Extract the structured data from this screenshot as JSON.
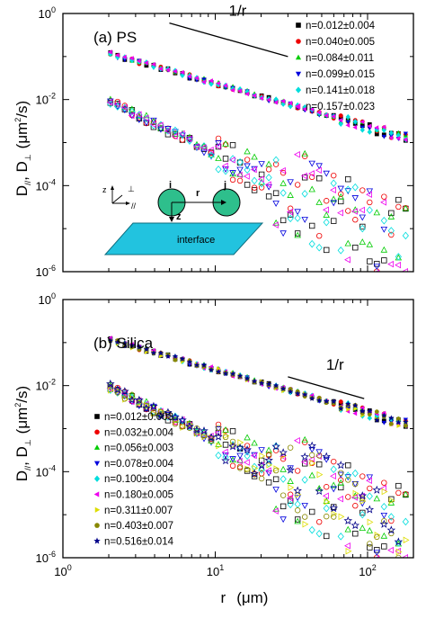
{
  "chart_data": [
    {
      "type": "scatter",
      "panel_label": "(a) PS",
      "x_scale": "log",
      "y_scale": "log",
      "xlim": [
        1,
        200
      ],
      "ylim": [
        1e-06,
        1
      ],
      "y_ticks": [
        {
          "value": 1e-06,
          "base": "10",
          "exp": "-6"
        },
        {
          "value": 0.0001,
          "base": "10",
          "exp": "-4"
        },
        {
          "value": 0.01,
          "base": "10",
          "exp": "-2"
        },
        {
          "value": 1,
          "base": "10",
          "exp": "0"
        }
      ],
      "annotation": {
        "text": "1/r",
        "line_x": [
          5,
          30
        ],
        "line_y": [
          0.6,
          0.1
        ]
      },
      "inset": {
        "label_i": "i",
        "label_j": "j",
        "label_r": "r",
        "label_z": "z",
        "axis_z": "z",
        "axis_perp": "⊥",
        "axis_par": "//",
        "surface_label": "interface"
      },
      "series": [
        {
          "name": "n=0.012±0.004",
          "marker": "square",
          "color": "#000000",
          "amp_par": 0.235,
          "amp_perp": 0.03
        },
        {
          "name": "n=0.040±0.005",
          "marker": "circle",
          "color": "#ee0000",
          "amp_par": 0.237,
          "amp_perp": 0.031
        },
        {
          "name": "n=0.084±0.011",
          "marker": "triangle-up",
          "color": "#00cc00",
          "amp_par": 0.239,
          "amp_perp": 0.032
        },
        {
          "name": "n=0.099±0.015",
          "marker": "triangle-down",
          "color": "#0000dd",
          "amp_par": 0.233,
          "amp_perp": 0.03
        },
        {
          "name": "n=0.141±0.018",
          "marker": "diamond",
          "color": "#00dddd",
          "amp_par": 0.236,
          "amp_perp": 0.031
        },
        {
          "name": "n=0.157±0.023",
          "marker": "triangle-left",
          "color": "#ee00ee",
          "amp_par": 0.238,
          "amp_perp": 0.032
        }
      ]
    },
    {
      "type": "scatter",
      "panel_label": "(b) Silica",
      "x_scale": "log",
      "y_scale": "log",
      "xlim": [
        1,
        200
      ],
      "ylim": [
        1e-06,
        1
      ],
      "x_ticks": [
        {
          "value": 1,
          "base": "10",
          "exp": "0"
        },
        {
          "value": 10,
          "base": "10",
          "exp": "1"
        },
        {
          "value": 100,
          "base": "10",
          "exp": "2"
        }
      ],
      "y_ticks": [
        {
          "value": 1e-06,
          "base": "10",
          "exp": "-6"
        },
        {
          "value": 0.0001,
          "base": "10",
          "exp": "-4"
        },
        {
          "value": 0.01,
          "base": "10",
          "exp": "-2"
        },
        {
          "value": 1,
          "base": "10",
          "exp": "0"
        }
      ],
      "annotation": {
        "text": "1/r",
        "line_x": [
          30,
          95
        ],
        "line_y": [
          0.016,
          0.005
        ]
      },
      "series": [
        {
          "name": "n=0.012±0.003",
          "marker": "square",
          "color": "#000000",
          "amp_par": 0.235,
          "amp_perp": 0.03
        },
        {
          "name": "n=0.032±0.004",
          "marker": "circle",
          "color": "#ee0000",
          "amp_par": 0.237,
          "amp_perp": 0.031
        },
        {
          "name": "n=0.056±0.003",
          "marker": "triangle-up",
          "color": "#00cc00",
          "amp_par": 0.24,
          "amp_perp": 0.032
        },
        {
          "name": "n=0.078±0.004",
          "marker": "triangle-down",
          "color": "#0000dd",
          "amp_par": 0.233,
          "amp_perp": 0.03
        },
        {
          "name": "n=0.100±0.004",
          "marker": "diamond",
          "color": "#00dddd",
          "amp_par": 0.236,
          "amp_perp": 0.031
        },
        {
          "name": "n=0.180±0.005",
          "marker": "triangle-left",
          "color": "#ee00ee",
          "amp_par": 0.238,
          "amp_perp": 0.032
        },
        {
          "name": "n=0.311±0.007",
          "marker": "triangle-right",
          "color": "#dddd00",
          "amp_par": 0.234,
          "amp_perp": 0.03
        },
        {
          "name": "n=0.403±0.007",
          "marker": "circle",
          "color": "#888800",
          "amp_par": 0.236,
          "amp_perp": 0.031
        },
        {
          "name": "n=0.516±0.014",
          "marker": "star",
          "color": "#000088",
          "amp_par": 0.239,
          "amp_perp": 0.032
        }
      ]
    }
  ],
  "y_axis_label": {
    "d_par": "D",
    "sub_par": "//",
    "comma": ", ",
    "d_perp": "D",
    "sub_perp": "⊥",
    "unit_open": "(μm",
    "unit_sup": "2",
    "unit_close": "/s)"
  },
  "x_axis_label": {
    "r": "r",
    "unit": "(μm)"
  }
}
